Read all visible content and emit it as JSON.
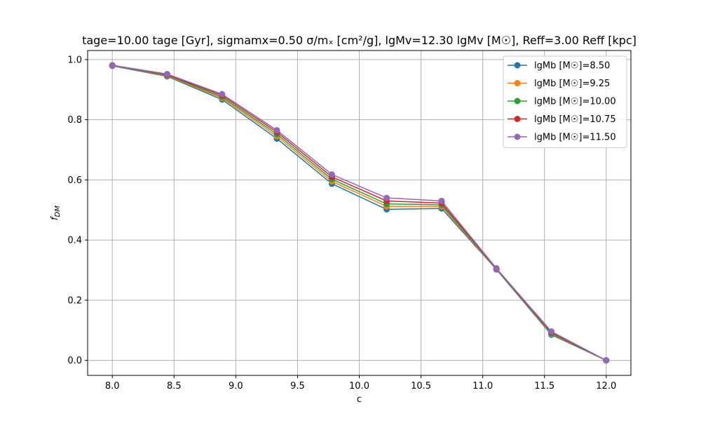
{
  "chart_data": {
    "type": "line",
    "title": "tage=10.00 tage [Gyr], sigmamx=0.50 σ/mₓ [cm²/g], lgMv=12.30 lgMv [M☉], Reff=3.00 Reff [kpc]",
    "xlabel": "c",
    "ylabel": "f_DM",
    "xlim": [
      7.8,
      12.2
    ],
    "ylim": [
      -0.05,
      1.03
    ],
    "xticks": [
      8.0,
      8.5,
      9.0,
      9.5,
      10.0,
      10.5,
      11.0,
      11.5,
      12.0
    ],
    "xtick_labels": [
      "8.0",
      "8.5",
      "9.0",
      "9.5",
      "10.0",
      "10.5",
      "11.0",
      "11.5",
      "12.0"
    ],
    "yticks": [
      0.0,
      0.2,
      0.4,
      0.6,
      0.8,
      1.0
    ],
    "ytick_labels": [
      "0.0",
      "0.2",
      "0.4",
      "0.6",
      "0.8",
      "1.0"
    ],
    "grid": true,
    "legend_position": "top-right",
    "x": [
      8.0,
      8.444,
      8.889,
      9.333,
      9.778,
      10.222,
      10.667,
      11.111,
      11.556,
      12.0
    ],
    "series": [
      {
        "name": "lgMb [M☉]=8.50",
        "color": "#1f77b4",
        "values": [
          0.979,
          0.944,
          0.867,
          0.737,
          0.587,
          0.502,
          0.505,
          0.302,
          0.085,
          0.0
        ]
      },
      {
        "name": "lgMb [M☉]=9.25",
        "color": "#ff7f0e",
        "values": [
          0.98,
          0.946,
          0.872,
          0.745,
          0.595,
          0.512,
          0.512,
          0.303,
          0.088,
          0.0
        ]
      },
      {
        "name": "lgMb [M☉]=10.00",
        "color": "#2ca02c",
        "values": [
          0.98,
          0.948,
          0.876,
          0.752,
          0.602,
          0.52,
          0.517,
          0.304,
          0.09,
          0.0
        ]
      },
      {
        "name": "lgMb [M☉]=10.75",
        "color": "#d62728",
        "values": [
          0.981,
          0.95,
          0.881,
          0.759,
          0.61,
          0.53,
          0.523,
          0.305,
          0.093,
          0.0
        ]
      },
      {
        "name": "lgMb [M☉]=11.50",
        "color": "#9467bd",
        "values": [
          0.981,
          0.952,
          0.885,
          0.765,
          0.618,
          0.54,
          0.53,
          0.306,
          0.096,
          0.0
        ]
      }
    ]
  }
}
